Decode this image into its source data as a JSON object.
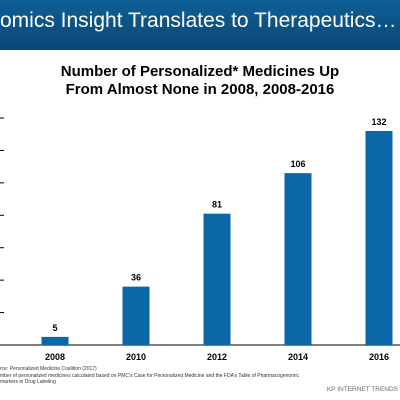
{
  "slide": {
    "header_title": "omics Insight Translates to Therapeutics…",
    "header_color": "#0c5a8f",
    "footnotes": [
      "rce: Personalized Medicine Coalition (2017)",
      "mber of personalized medicines calculated based on PMC’s Case for Personalized Medicine and the FDA’s Table of Pharmacogenomic",
      "markers in Drug Labeling"
    ],
    "brand": "KP INTERNET TRENDS"
  },
  "chart_data": {
    "type": "bar",
    "title_lines": [
      "Number of Personalized* Medicines Up",
      "From Almost None in 2008, 2008-2016"
    ],
    "categories": [
      "2008",
      "2010",
      "2012",
      "2014",
      "2016"
    ],
    "values": [
      5,
      36,
      81,
      106,
      132
    ],
    "data_labels": [
      "5",
      "36",
      "81",
      "106",
      "132"
    ],
    "ylim": [
      0,
      140
    ],
    "y_gridlines": [
      0,
      20,
      40,
      60,
      80,
      100,
      120,
      140
    ],
    "bar_color": "#0c67a8",
    "grid": false
  }
}
